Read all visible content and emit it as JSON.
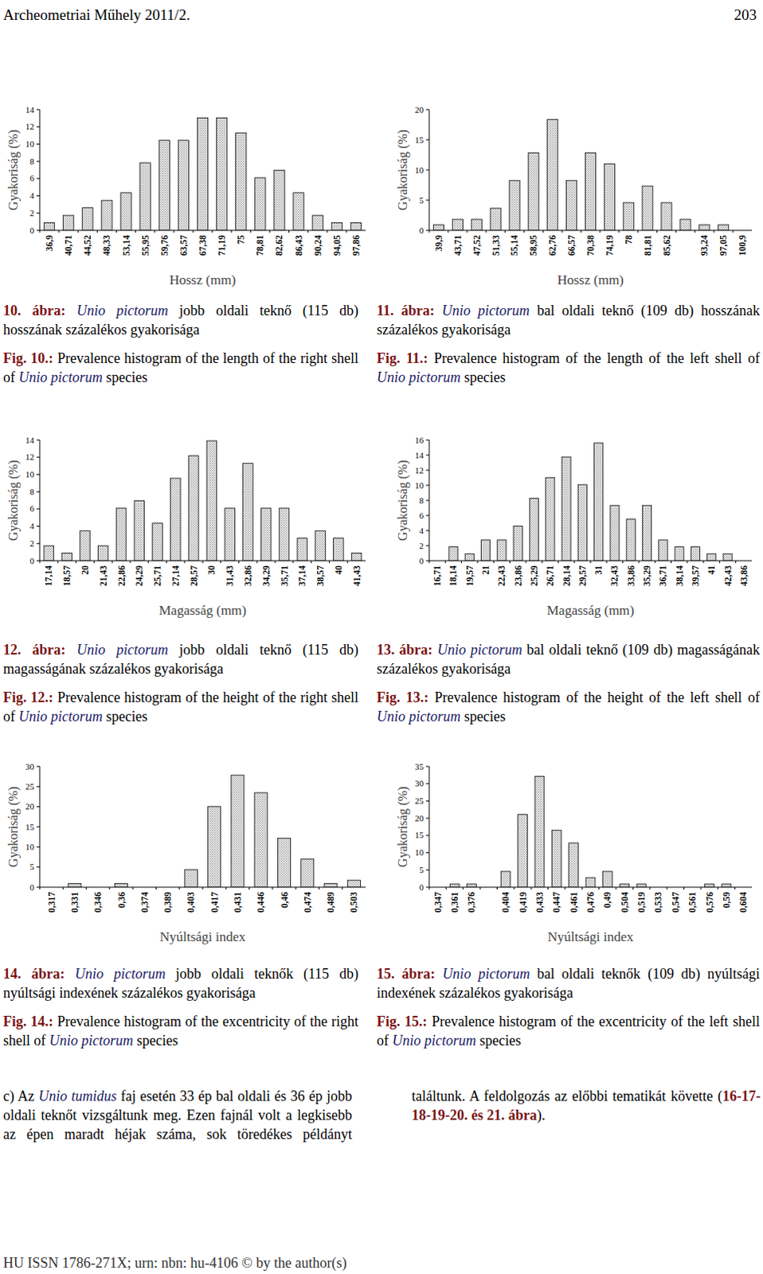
{
  "header": {
    "journal": "Archeometriai Műhely 2011/2.",
    "page": "203"
  },
  "chart_data": [
    {
      "type": "bar",
      "x_label": "Hossz (mm)",
      "y_label": "Gyakoriság (%)",
      "color": "#8c8c8c",
      "grid": false,
      "categories": [
        "36,9",
        "40,71",
        "44,52",
        "48,33",
        "53,14",
        "55,95",
        "59,76",
        "63,57",
        "67,38",
        "71,19",
        "75",
        "78,81",
        "82,62",
        "86,43",
        "90,24",
        "94,05",
        "97,86"
      ],
      "values": [
        0.87,
        1.74,
        2.61,
        3.48,
        4.35,
        7.83,
        10.43,
        10.43,
        13.04,
        13.04,
        11.3,
        6.09,
        6.96,
        4.35,
        1.74,
        0.87,
        0.87
      ],
      "ylim": [
        0,
        14
      ],
      "yticks": [
        0,
        2,
        4,
        6,
        8,
        10,
        12,
        14
      ]
    },
    {
      "type": "bar",
      "x_label": "Hossz (mm)",
      "y_label": "Gyakoriság (%)",
      "color": "#8c8c8c",
      "grid": false,
      "categories": [
        "39,9",
        "43,71",
        "47,52",
        "51,33",
        "55,14",
        "58,95",
        "62,76",
        "66,57",
        "70,38",
        "74,19",
        "78",
        "81,81",
        "85,62",
        null,
        "93,24",
        "97,05",
        "100,9"
      ],
      "values": [
        0.92,
        1.83,
        1.83,
        3.67,
        8.26,
        12.84,
        18.35,
        8.26,
        12.84,
        11.01,
        4.59,
        7.34,
        4.59,
        1.83,
        0.92,
        0.92,
        0
      ],
      "ylim": [
        0,
        20
      ],
      "yticks": [
        0,
        5,
        10,
        15,
        20
      ]
    },
    {
      "type": "bar",
      "x_label": "Magasság (mm)",
      "y_label": "Gyakoriság (%)",
      "color": "#8c8c8c",
      "grid": false,
      "categories": [
        "17,14",
        "18,57",
        "20",
        "21,43",
        "22,86",
        "24,29",
        "25,71",
        "27,14",
        "28,57",
        "30",
        "31,43",
        "32,86",
        "34,29",
        "35,71",
        "37,14",
        "38,57",
        "40",
        "41,43"
      ],
      "values": [
        1.74,
        0.87,
        3.48,
        1.74,
        6.09,
        6.96,
        4.35,
        9.57,
        12.17,
        13.91,
        6.09,
        11.3,
        6.09,
        6.09,
        2.61,
        3.48,
        2.61,
        0.87
      ],
      "ylim": [
        0,
        14
      ],
      "yticks": [
        0,
        2,
        4,
        6,
        8,
        10,
        12,
        14
      ]
    },
    {
      "type": "bar",
      "x_label": "Magasság (mm)",
      "y_label": "Gyakoriság (%)",
      "color": "#8c8c8c",
      "grid": false,
      "categories": [
        "16,71",
        "18,14",
        "19,57",
        "21",
        "22,43",
        "23,86",
        "25,29",
        "26,71",
        "28,14",
        "29,57",
        "31",
        "32,43",
        "33,86",
        "35,29",
        "36,71",
        "38,14",
        "39,57",
        "41",
        "42,43",
        "43,86"
      ],
      "values": [
        0,
        1.83,
        0.92,
        2.75,
        2.75,
        4.59,
        8.26,
        11.01,
        13.76,
        10.09,
        15.6,
        7.34,
        5.5,
        7.34,
        2.75,
        1.83,
        1.83,
        0.92,
        0.92,
        0
      ],
      "ylim": [
        0,
        16
      ],
      "yticks": [
        0,
        2,
        4,
        6,
        8,
        10,
        12,
        14,
        16
      ]
    },
    {
      "type": "bar",
      "x_label": "Nyúltsági index",
      "y_label": "Gyakoriság (%)",
      "color": "#8c8c8c",
      "grid": false,
      "categories": [
        "0,317",
        "0,331",
        "0,346",
        "0,36",
        "0,374",
        "0,389",
        "0,403",
        "0,417",
        "0,431",
        "0,446",
        "0,46",
        "0,474",
        "0,489",
        "0,503"
      ],
      "values": [
        0,
        0.87,
        0,
        0.87,
        0,
        0,
        4.35,
        20,
        27.83,
        23.48,
        12.17,
        6.96,
        0.87,
        1.74
      ],
      "ylim": [
        0,
        30
      ],
      "yticks": [
        0,
        5,
        10,
        15,
        20,
        25,
        30
      ]
    },
    {
      "type": "bar",
      "x_label": "Nyúltsági index",
      "y_label": "Gyakoriság (%)",
      "color": "#8c8c8c",
      "grid": false,
      "categories": [
        "0,347",
        "0,361",
        "0,376",
        null,
        "0,404",
        "0,419",
        "0,433",
        "0,447",
        "0,461",
        "0,476",
        "0,49",
        "0,504",
        "0,519",
        "0,533",
        "0,547",
        "0,561",
        "0,576",
        "0,59",
        "0,604"
      ],
      "values": [
        0,
        0.92,
        0.92,
        0,
        4.59,
        21.1,
        32.11,
        16.51,
        12.84,
        2.75,
        4.59,
        0.92,
        0.92,
        0,
        0,
        0,
        0.92,
        0.92,
        0
      ],
      "ylim": [
        0,
        35
      ],
      "yticks": [
        0,
        5,
        10,
        15,
        20,
        25,
        30,
        35
      ]
    }
  ],
  "captions": [
    {
      "hu": [
        {
          "text": "10. ábra:",
          "style": "bold"
        },
        {
          "text": " ",
          "style": "normal"
        },
        {
          "text": "Unio pictorum",
          "style": "italic"
        },
        {
          "text": " jobb oldali teknő (115 db) hosszának százalékos gyakorisága",
          "style": "normal"
        }
      ],
      "en": [
        {
          "text": "Fig. 10.:",
          "style": "bold"
        },
        {
          "text": " Prevalence histogram of the length of the right shell of ",
          "style": "normal"
        },
        {
          "text": "Unio pictorum",
          "style": "italic"
        },
        {
          "text": " species",
          "style": "normal"
        }
      ]
    },
    {
      "hu": [
        {
          "text": "11. ábra:",
          "style": "bold"
        },
        {
          "text": " ",
          "style": "normal"
        },
        {
          "text": "Unio pictorum",
          "style": "italic"
        },
        {
          "text": " bal oldali teknő (109 db) hosszának százalékos gyakorisága",
          "style": "normal"
        }
      ],
      "en": [
        {
          "text": "Fig. 11.:",
          "style": "bold"
        },
        {
          "text": " Prevalence histogram of the length of the left shell of ",
          "style": "normal"
        },
        {
          "text": "Unio pictorum",
          "style": "italic"
        },
        {
          "text": " species",
          "style": "normal"
        }
      ]
    },
    {
      "hu": [
        {
          "text": "12. ábra:",
          "style": "bold"
        },
        {
          "text": " ",
          "style": "normal"
        },
        {
          "text": "Unio pictorum",
          "style": "italic"
        },
        {
          "text": " jobb oldali teknő (115 db) magasságának százalékos gyakorisága",
          "style": "normal"
        }
      ],
      "en": [
        {
          "text": "Fig. 12.:",
          "style": "bold"
        },
        {
          "text": " Prevalence histogram of the height of the right shell of ",
          "style": "normal"
        },
        {
          "text": "Unio pictorum",
          "style": "italic"
        },
        {
          "text": " species",
          "style": "normal"
        }
      ]
    },
    {
      "hu": [
        {
          "text": "13. ábra:",
          "style": "bold"
        },
        {
          "text": " ",
          "style": "normal"
        },
        {
          "text": "Unio pictorum",
          "style": "italic"
        },
        {
          "text": " bal oldali teknő (109 db) magasságának százalékos gyakorisága",
          "style": "normal"
        }
      ],
      "en": [
        {
          "text": "Fig. 13.:",
          "style": "bold"
        },
        {
          "text": " Prevalence histogram of the height of the left shell of ",
          "style": "normal"
        },
        {
          "text": "Unio pictorum",
          "style": "italic"
        },
        {
          "text": " species",
          "style": "normal"
        }
      ]
    },
    {
      "hu": [
        {
          "text": "14. ábra:",
          "style": "bold"
        },
        {
          "text": " ",
          "style": "normal"
        },
        {
          "text": "Unio pictorum",
          "style": "italic"
        },
        {
          "text": " jobb oldali teknők (115 db) nyúltsági indexének százalékos gyakorisága",
          "style": "normal"
        }
      ],
      "en": [
        {
          "text": "Fig. 14.:",
          "style": "bold"
        },
        {
          "text": " Prevalence histogram of the excentricity of the right shell of ",
          "style": "normal"
        },
        {
          "text": "Unio pictorum",
          "style": "italic"
        },
        {
          "text": " species",
          "style": "normal"
        }
      ]
    },
    {
      "hu": [
        {
          "text": "15. ábra:",
          "style": "bold"
        },
        {
          "text": " ",
          "style": "normal"
        },
        {
          "text": "Unio pictorum",
          "style": "italic"
        },
        {
          "text": " bal oldali teknők (109 db) nyúltsági indexének százalékos gyakorisága",
          "style": "normal"
        }
      ],
      "en": [
        {
          "text": "Fig. 15.:",
          "style": "bold"
        },
        {
          "text": " Prevalence histogram of the excentricity of the left shell of ",
          "style": "normal"
        },
        {
          "text": "Unio pictorum",
          "style": "italic"
        },
        {
          "text": " species",
          "style": "normal"
        }
      ]
    }
  ],
  "paragraph": [
    {
      "text": "c) Az ",
      "style": "normal"
    },
    {
      "text": "Unio tumidus",
      "style": "italic"
    },
    {
      "text": " faj esetén 33 ép bal oldali és 36 ép jobb oldali teknőt vizsgáltunk meg. Ezen fajnál volt a legkisebb az épen maradt héjak száma, sok töredékes példányt találtunk. A feldolgozás az előbbi tematikát követte (",
      "style": "normal"
    },
    {
      "text": "16-17-18-19-20. és 21. ábra",
      "style": "bold"
    },
    {
      "text": ").",
      "style": "normal"
    }
  ],
  "footer": "HU ISSN 1786-271X; urn: nbn: hu-4106 © by the author(s)"
}
